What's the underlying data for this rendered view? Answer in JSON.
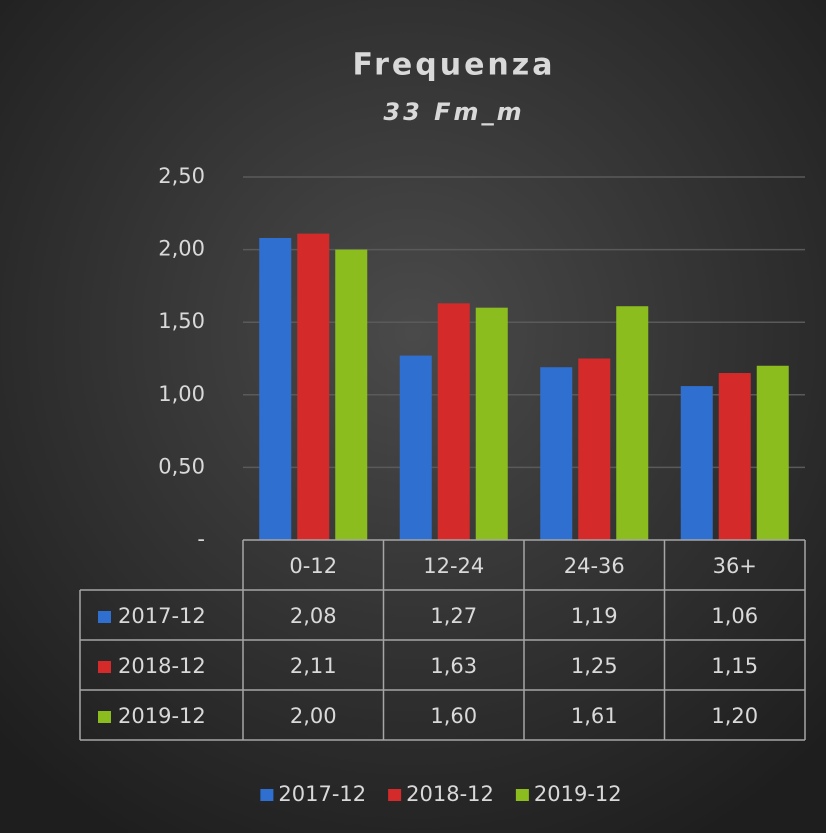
{
  "chart_data": {
    "type": "bar",
    "title": "Frequenza",
    "subtitle": "33 Fm_m",
    "categories": [
      "0-12",
      "12-24",
      "24-36",
      "36+"
    ],
    "series": [
      {
        "name": "2017-12",
        "color": "#2f6fd0",
        "values": [
          2.08,
          1.27,
          1.19,
          1.06
        ],
        "value_labels": [
          "2,08",
          "1,27",
          "1,19",
          "1,06"
        ]
      },
      {
        "name": "2018-12",
        "color": "#d42a2a",
        "values": [
          2.11,
          1.63,
          1.25,
          1.15
        ],
        "value_labels": [
          "2,11",
          "1,63",
          "1,25",
          "1,15"
        ]
      },
      {
        "name": "2019-12",
        "color": "#8cbd1e",
        "values": [
          2.0,
          1.6,
          1.61,
          1.2
        ],
        "value_labels": [
          "2,00",
          "1,60",
          "1,61",
          "1,20"
        ]
      }
    ],
    "ylim": [
      0,
      2.5
    ],
    "yticks": [
      {
        "value": 0,
        "label": "-"
      },
      {
        "value": 0.5,
        "label": "0,50"
      },
      {
        "value": 1,
        "label": "1,00"
      },
      {
        "value": 1.5,
        "label": "1,50"
      },
      {
        "value": 2,
        "label": "2,00"
      },
      {
        "value": 2.5,
        "label": "2,50"
      }
    ],
    "grid": true,
    "data_table": true,
    "legend": "bottom"
  }
}
